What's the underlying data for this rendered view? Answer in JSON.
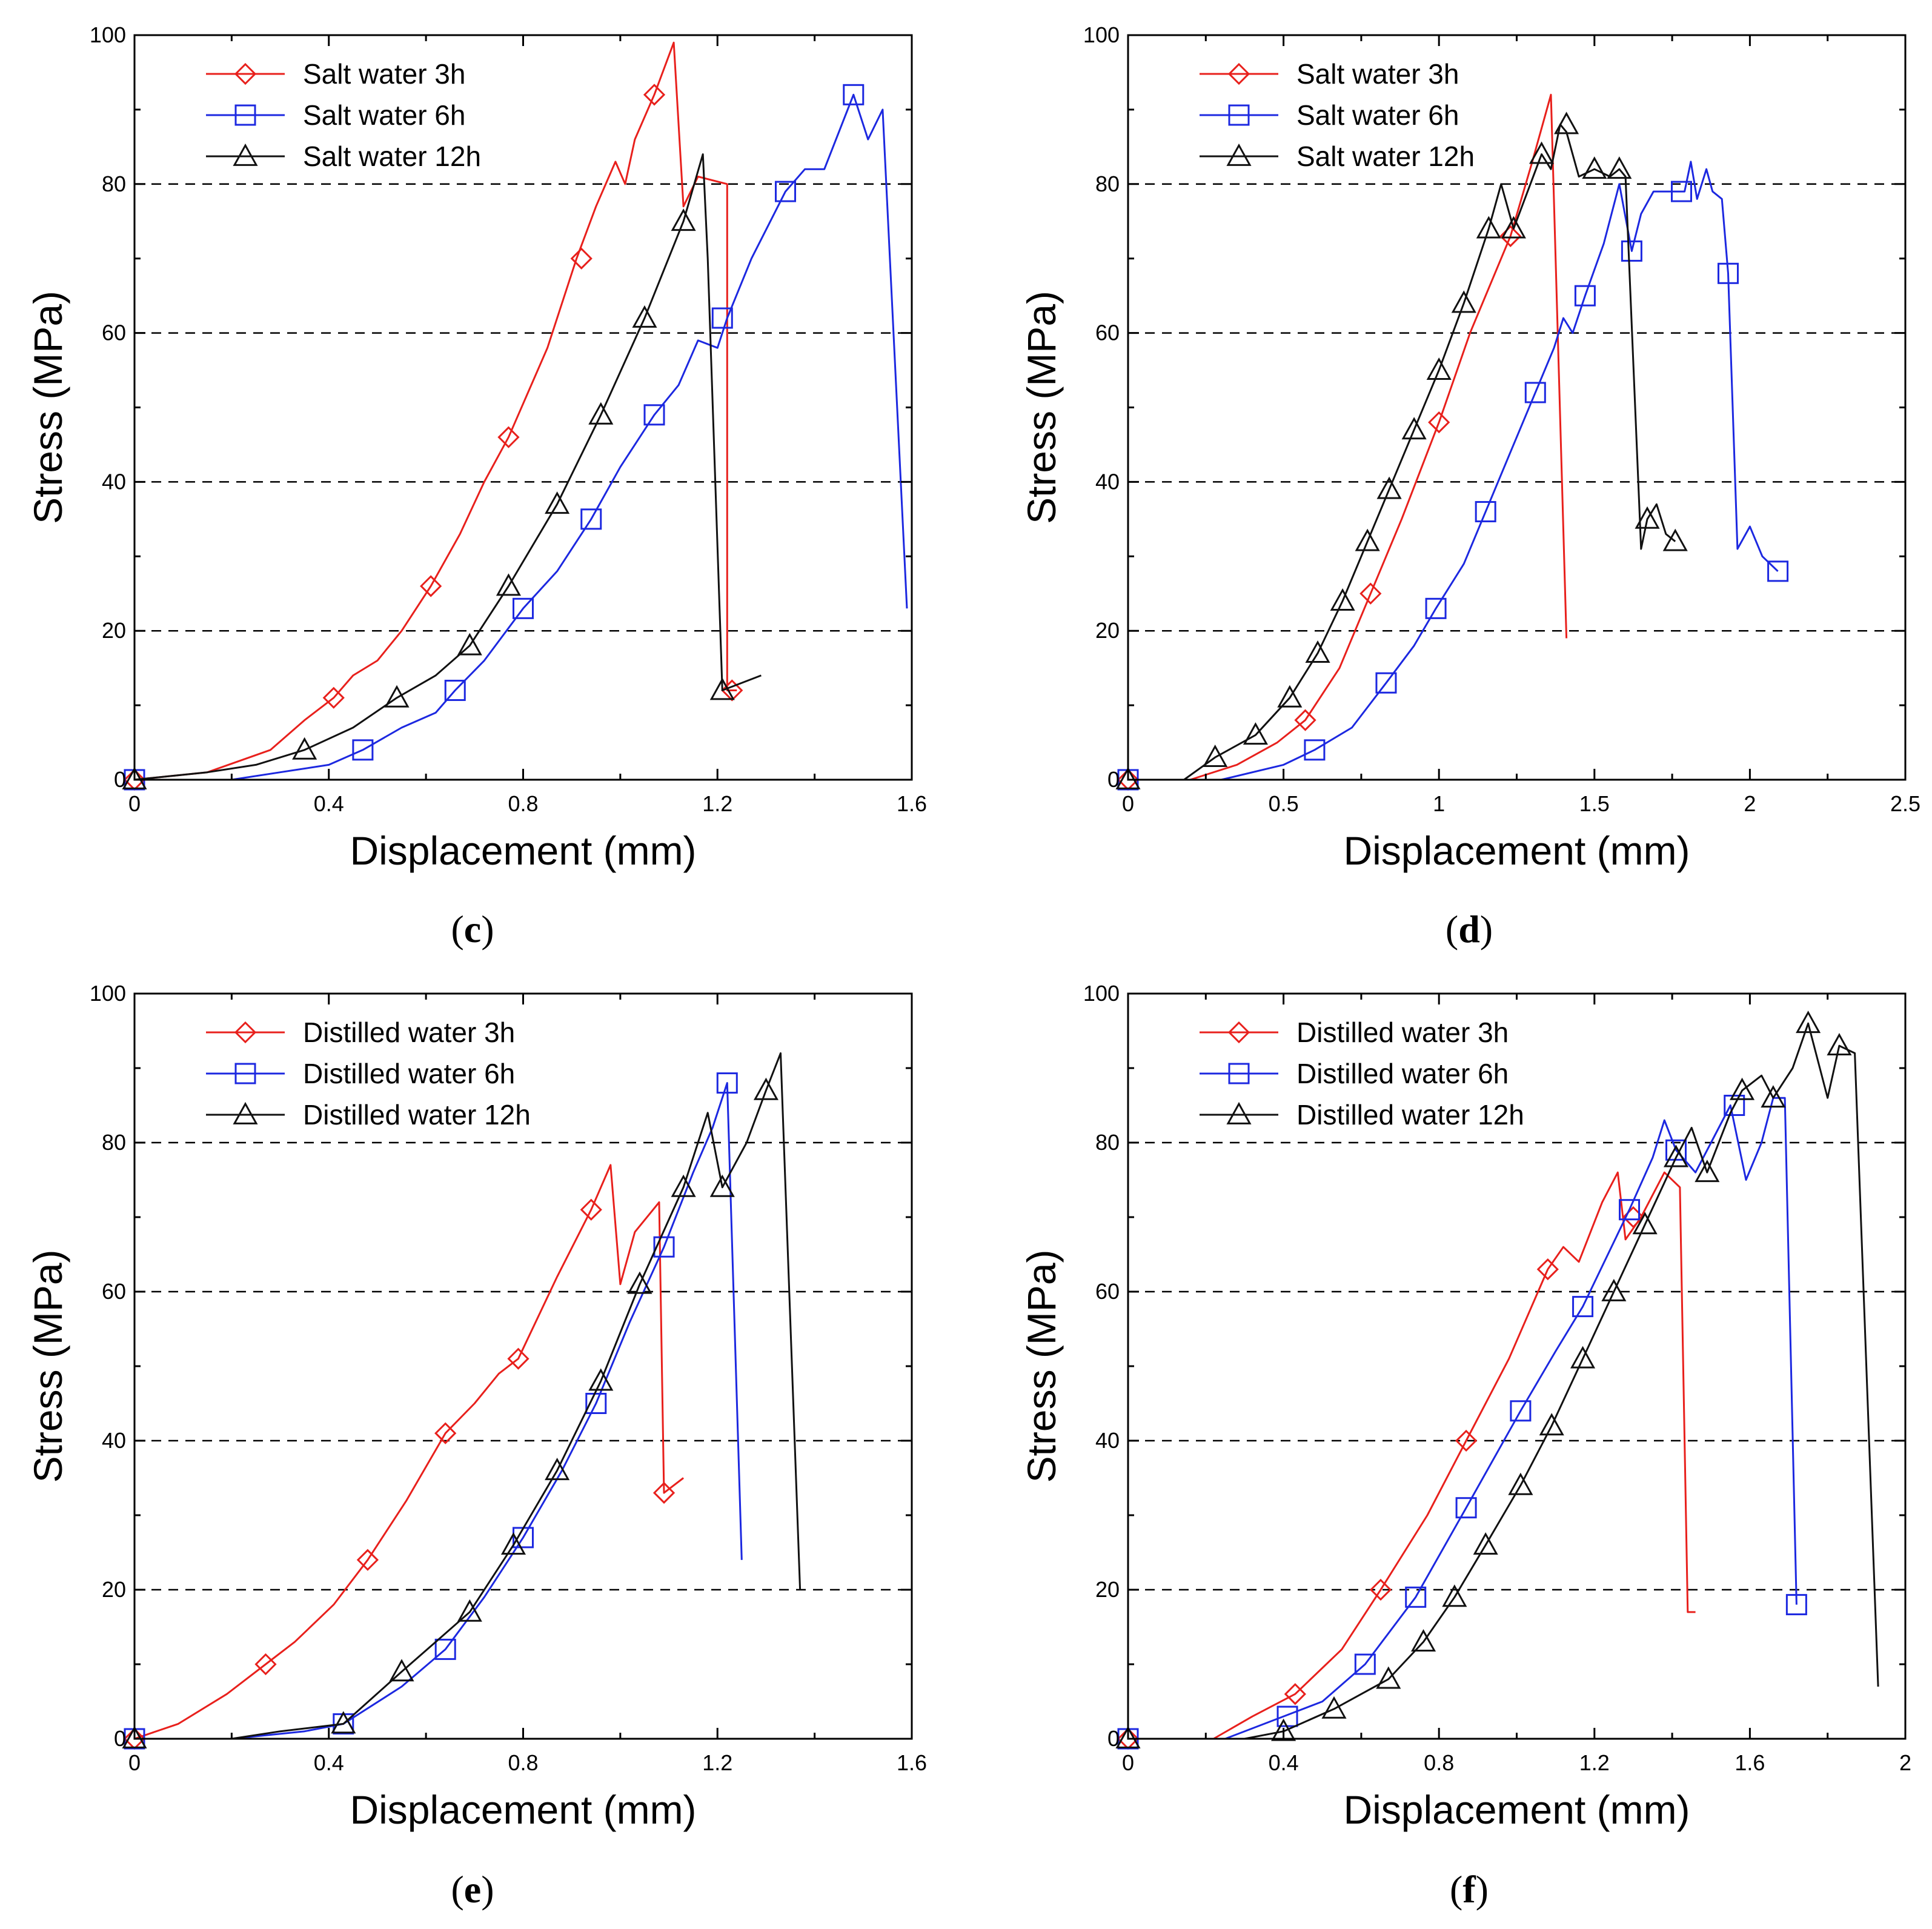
{
  "chart_data": [
    {
      "id": "c",
      "panel_label": "c",
      "type": "line",
      "xlabel": "Displacement (mm)",
      "ylabel": "Stress (MPa)",
      "xlim": [
        0,
        1.6
      ],
      "ylim": [
        0,
        100
      ],
      "xticks": [
        0,
        0.4,
        0.8,
        1.2,
        1.6
      ],
      "xtick_labels": [
        "0",
        "0.4",
        "0.8",
        "1.2",
        "1.6"
      ],
      "yticks": [
        0,
        20,
        40,
        60,
        80,
        100
      ],
      "ytick_labels": [
        "0",
        "20",
        "40",
        "60",
        "80",
        "100"
      ],
      "grid_y": [
        20,
        40,
        60,
        80
      ],
      "legend_position": "top-left",
      "series": [
        {
          "name": "Salt water 3h",
          "color": "#e8201c",
          "marker": "diamond",
          "x": [
            0,
            0.15,
            0.28,
            0.35,
            0.41,
            0.45,
            0.5,
            0.55,
            0.61,
            0.67,
            0.72,
            0.77,
            0.85,
            0.91,
            0.95,
            0.99,
            1.01,
            1.03,
            1.07,
            1.11,
            1.13,
            1.16,
            1.22,
            1.22,
            1.24
          ],
          "y": [
            0,
            1,
            4,
            8,
            11,
            14,
            16,
            20,
            26,
            33,
            40,
            46,
            58,
            70,
            77,
            83,
            80,
            86,
            92,
            99,
            77,
            81,
            80,
            12,
            12
          ],
          "markers_x": [
            0,
            0.41,
            0.61,
            0.77,
            0.92,
            1.07,
            1.23
          ],
          "markers_y": [
            0,
            11,
            26,
            46,
            70,
            92,
            12
          ]
        },
        {
          "name": "Salt water 6h",
          "color": "#1c28e0",
          "marker": "square",
          "x": [
            0,
            0.2,
            0.3,
            0.4,
            0.47,
            0.55,
            0.62,
            0.66,
            0.72,
            0.8,
            0.87,
            0.94,
            1.0,
            1.07,
            1.12,
            1.16,
            1.2,
            1.22,
            1.27,
            1.34,
            1.38,
            1.42,
            1.48,
            1.51,
            1.54,
            1.59
          ],
          "y": [
            0,
            0,
            1,
            2,
            4,
            7,
            9,
            12,
            16,
            23,
            28,
            35,
            42,
            49,
            53,
            59,
            58,
            62,
            70,
            79,
            82,
            82,
            92,
            86,
            90,
            23
          ],
          "markers_x": [
            0,
            0.47,
            0.66,
            0.8,
            0.94,
            1.07,
            1.21,
            1.34,
            1.48
          ],
          "markers_y": [
            0,
            4,
            12,
            23,
            35,
            49,
            62,
            79,
            92
          ]
        },
        {
          "name": "Salt water 12h",
          "color": "#111111",
          "marker": "triangle",
          "x": [
            0,
            0.15,
            0.25,
            0.35,
            0.45,
            0.54,
            0.62,
            0.69,
            0.77,
            0.87,
            0.96,
            1.05,
            1.13,
            1.17,
            1.18,
            1.21,
            1.29
          ],
          "y": [
            0,
            1,
            2,
            4,
            7,
            11,
            14,
            18,
            26,
            37,
            49,
            62,
            75,
            84,
            70,
            12,
            14
          ],
          "markers_x": [
            0,
            0.35,
            0.54,
            0.69,
            0.77,
            0.87,
            0.96,
            1.05,
            1.13,
            1.21
          ],
          "markers_y": [
            0,
            4,
            11,
            18,
            26,
            37,
            49,
            62,
            75,
            12
          ]
        }
      ]
    },
    {
      "id": "d",
      "panel_label": "d",
      "type": "line",
      "xlabel": "Displacement (mm)",
      "ylabel": "Stress (MPa)",
      "xlim": [
        0,
        2.5
      ],
      "ylim": [
        0,
        100
      ],
      "xticks": [
        0,
        0.5,
        1,
        1.5,
        2,
        2.5
      ],
      "xtick_labels": [
        "0",
        "0.5",
        "1",
        "1.5",
        "2",
        "2.5"
      ],
      "yticks": [
        0,
        20,
        40,
        60,
        80,
        100
      ],
      "ytick_labels": [
        "0",
        "20",
        "40",
        "60",
        "80",
        "100"
      ],
      "grid_y": [
        20,
        40,
        60,
        80
      ],
      "legend_position": "top-left",
      "series": [
        {
          "name": "Salt water 3h",
          "color": "#e8201c",
          "marker": "diamond",
          "x": [
            0,
            0.2,
            0.35,
            0.48,
            0.57,
            0.68,
            0.78,
            0.88,
            1.0,
            1.1,
            1.23,
            1.3,
            1.36,
            1.41
          ],
          "y": [
            0,
            0,
            2,
            5,
            8,
            15,
            25,
            35,
            48,
            60,
            73,
            83,
            92,
            19
          ],
          "markers_x": [
            0,
            0.57,
            0.78,
            1.0,
            1.23
          ],
          "markers_y": [
            0,
            8,
            25,
            48,
            73
          ]
        },
        {
          "name": "Salt water 6h",
          "color": "#1c28e0",
          "marker": "square",
          "x": [
            0,
            0.3,
            0.5,
            0.6,
            0.72,
            0.83,
            0.92,
            0.99,
            1.08,
            1.15,
            1.23,
            1.31,
            1.37,
            1.4,
            1.43,
            1.47,
            1.53,
            1.58,
            1.62,
            1.65,
            1.69,
            1.74,
            1.79,
            1.81,
            1.83,
            1.86,
            1.88,
            1.91,
            1.93,
            1.96,
            2.0,
            2.04,
            2.09
          ],
          "y": [
            0,
            0,
            2,
            4,
            7,
            13,
            18,
            23,
            29,
            36,
            44,
            52,
            58,
            62,
            60,
            65,
            72,
            80,
            71,
            76,
            79,
            79,
            79,
            83,
            78,
            82,
            79,
            78,
            68,
            31,
            34,
            30,
            28
          ],
          "markers_x": [
            0,
            0.6,
            0.83,
            0.99,
            1.15,
            1.31,
            1.47,
            1.62,
            1.78,
            1.93,
            2.09
          ],
          "markers_y": [
            0,
            4,
            13,
            23,
            36,
            52,
            65,
            71,
            79,
            68,
            28
          ]
        },
        {
          "name": "Salt water 12h",
          "color": "#111111",
          "marker": "triangle",
          "x": [
            0,
            0.18,
            0.28,
            0.41,
            0.52,
            0.61,
            0.69,
            0.77,
            0.84,
            0.92,
            1.0,
            1.08,
            1.16,
            1.2,
            1.24,
            1.33,
            1.36,
            1.39,
            1.41,
            1.45,
            1.5,
            1.55,
            1.58,
            1.6,
            1.65,
            1.67,
            1.7,
            1.73,
            1.76
          ],
          "y": [
            0,
            0,
            3,
            6,
            11,
            17,
            24,
            32,
            39,
            47,
            55,
            64,
            74,
            80,
            74,
            84,
            82,
            88,
            87,
            81,
            82,
            81,
            82,
            81,
            31,
            35,
            37,
            33,
            32
          ],
          "markers_x": [
            0,
            0.28,
            0.41,
            0.52,
            0.61,
            0.69,
            0.77,
            0.84,
            0.92,
            1.0,
            1.08,
            1.16,
            1.24,
            1.33,
            1.41,
            1.5,
            1.58,
            1.67,
            1.76
          ],
          "markers_y": [
            0,
            3,
            6,
            11,
            17,
            24,
            32,
            39,
            47,
            55,
            64,
            74,
            74,
            84,
            88,
            82,
            82,
            35,
            32
          ]
        }
      ]
    },
    {
      "id": "e",
      "panel_label": "e",
      "type": "line",
      "xlabel": "Displacement (mm)",
      "ylabel": "Stress (MPa)",
      "xlim": [
        0,
        1.6
      ],
      "ylim": [
        0,
        100
      ],
      "xticks": [
        0,
        0.4,
        0.8,
        1.2,
        1.6
      ],
      "xtick_labels": [
        "0",
        "0.4",
        "0.8",
        "1.2",
        "1.6"
      ],
      "yticks": [
        0,
        20,
        40,
        60,
        80,
        100
      ],
      "ytick_labels": [
        "0",
        "20",
        "40",
        "60",
        "80",
        "100"
      ],
      "grid_y": [
        20,
        40,
        60,
        80
      ],
      "legend_position": "top-left",
      "series": [
        {
          "name": "Distilled water 3h",
          "color": "#e8201c",
          "marker": "diamond",
          "x": [
            0,
            0.09,
            0.19,
            0.27,
            0.33,
            0.41,
            0.48,
            0.56,
            0.64,
            0.7,
            0.75,
            0.79,
            0.87,
            0.94,
            0.98,
            1.0,
            1.03,
            1.08,
            1.09,
            1.13
          ],
          "y": [
            0,
            2,
            6,
            10,
            13,
            18,
            24,
            32,
            41,
            45,
            49,
            51,
            62,
            71,
            77,
            61,
            68,
            72,
            33,
            35
          ],
          "markers_x": [
            0,
            0.27,
            0.48,
            0.64,
            0.79,
            0.94,
            1.09
          ],
          "markers_y": [
            0,
            10,
            24,
            41,
            51,
            71,
            33
          ]
        },
        {
          "name": "Distilled water 6h",
          "color": "#1c28e0",
          "marker": "square",
          "x": [
            0,
            0.2,
            0.35,
            0.43,
            0.55,
            0.64,
            0.72,
            0.8,
            0.88,
            0.95,
            1.02,
            1.09,
            1.15,
            1.19,
            1.22,
            1.25
          ],
          "y": [
            0,
            0,
            1,
            2,
            7,
            12,
            19,
            27,
            36,
            45,
            56,
            66,
            76,
            82,
            88,
            24
          ],
          "markers_x": [
            0,
            0.43,
            0.64,
            0.8,
            0.95,
            1.09,
            1.22
          ],
          "markers_y": [
            0,
            2,
            12,
            27,
            45,
            66,
            88
          ]
        },
        {
          "name": "Distilled water 12h",
          "color": "#111111",
          "marker": "triangle",
          "x": [
            0,
            0.2,
            0.3,
            0.43,
            0.55,
            0.62,
            0.69,
            0.78,
            0.87,
            0.96,
            1.04,
            1.13,
            1.18,
            1.21,
            1.26,
            1.3,
            1.33,
            1.37
          ],
          "y": [
            0,
            0,
            1,
            2,
            9,
            13,
            17,
            26,
            36,
            48,
            61,
            74,
            84,
            74,
            80,
            87,
            92,
            20
          ],
          "markers_x": [
            0,
            0.43,
            0.55,
            0.69,
            0.78,
            0.87,
            0.96,
            1.04,
            1.13,
            1.21,
            1.3
          ],
          "markers_y": [
            0,
            2,
            9,
            17,
            26,
            36,
            48,
            61,
            74,
            74,
            87
          ]
        }
      ]
    },
    {
      "id": "f",
      "panel_label": "f",
      "type": "line",
      "xlabel": "Displacement (mm)",
      "ylabel": "Stress (MPa)",
      "xlim": [
        0,
        2
      ],
      "ylim": [
        0,
        100
      ],
      "xticks": [
        0,
        0.4,
        0.8,
        1.2,
        1.6,
        2
      ],
      "xtick_labels": [
        "0",
        "0.4",
        "0.8",
        "1.2",
        "1.6",
        "2"
      ],
      "yticks": [
        0,
        20,
        40,
        60,
        80,
        100
      ],
      "ytick_labels": [
        "0",
        "20",
        "40",
        "60",
        "80",
        "100"
      ],
      "grid_y": [
        20,
        40,
        60,
        80
      ],
      "legend_position": "top-left",
      "series": [
        {
          "name": "Distilled water 3h",
          "color": "#e8201c",
          "marker": "diamond",
          "x": [
            0,
            0.22,
            0.32,
            0.43,
            0.55,
            0.65,
            0.77,
            0.87,
            0.98,
            1.08,
            1.12,
            1.16,
            1.22,
            1.26,
            1.28,
            1.32,
            1.38,
            1.42,
            1.44,
            1.46
          ],
          "y": [
            0,
            0,
            3,
            6,
            12,
            20,
            30,
            40,
            51,
            63,
            66,
            64,
            72,
            76,
            67,
            70,
            76,
            74,
            17,
            17
          ],
          "markers_x": [
            0,
            0.43,
            0.65,
            0.87,
            1.08,
            1.3
          ],
          "markers_y": [
            0,
            6,
            20,
            40,
            63,
            70
          ]
        },
        {
          "name": "Distilled water 6h",
          "color": "#1c28e0",
          "marker": "square",
          "x": [
            0,
            0.25,
            0.4,
            0.5,
            0.61,
            0.74,
            0.87,
            1.01,
            1.1,
            1.17,
            1.29,
            1.35,
            1.38,
            1.41,
            1.46,
            1.5,
            1.55,
            1.59,
            1.63,
            1.66,
            1.69,
            1.72
          ],
          "y": [
            0,
            0,
            3,
            5,
            10,
            19,
            31,
            44,
            52,
            58,
            71,
            78,
            83,
            79,
            76,
            80,
            85,
            75,
            80,
            86,
            86,
            18
          ],
          "markers_x": [
            0,
            0.41,
            0.61,
            0.74,
            0.87,
            1.01,
            1.17,
            1.29,
            1.41,
            1.56,
            1.72
          ],
          "markers_y": [
            0,
            3,
            10,
            19,
            31,
            44,
            58,
            71,
            79,
            85,
            18
          ]
        },
        {
          "name": "Distilled water 12h",
          "color": "#111111",
          "marker": "triangle",
          "x": [
            0,
            0.3,
            0.4,
            0.53,
            0.67,
            0.76,
            0.84,
            0.92,
            1.01,
            1.09,
            1.17,
            1.25,
            1.33,
            1.41,
            1.45,
            1.49,
            1.55,
            1.58,
            1.63,
            1.66,
            1.71,
            1.75,
            1.8,
            1.83,
            1.87,
            1.93
          ],
          "y": [
            0,
            0,
            1,
            4,
            8,
            13,
            19,
            26,
            34,
            42,
            51,
            60,
            69,
            78,
            82,
            76,
            84,
            87,
            89,
            86,
            90,
            96,
            86,
            93,
            92,
            7
          ],
          "markers_x": [
            0,
            0.4,
            0.53,
            0.67,
            0.76,
            0.84,
            0.92,
            1.01,
            1.09,
            1.17,
            1.25,
            1.33,
            1.41,
            1.49,
            1.58,
            1.66,
            1.75,
            1.83
          ],
          "markers_y": [
            0,
            1,
            4,
            8,
            13,
            19,
            26,
            34,
            42,
            51,
            60,
            69,
            78,
            76,
            87,
            86,
            96,
            93
          ]
        }
      ]
    }
  ]
}
